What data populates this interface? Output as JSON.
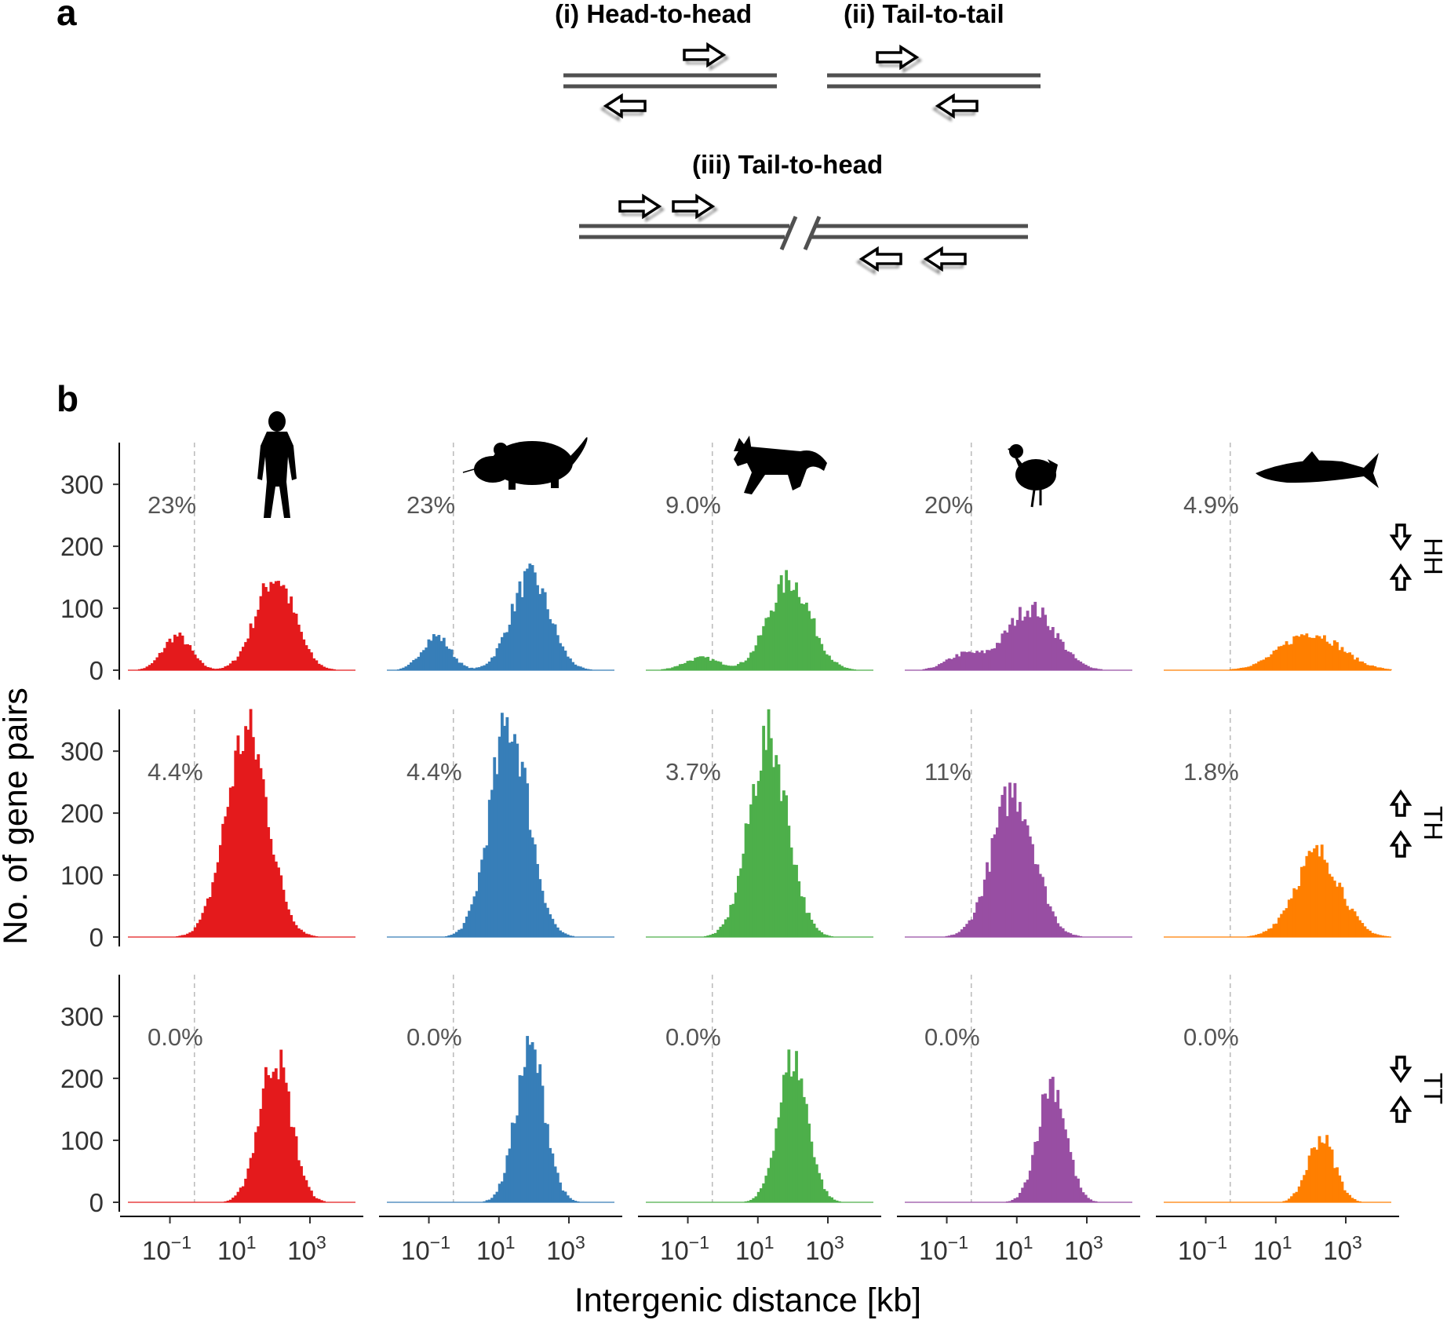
{
  "panel_a": {
    "label": "a",
    "configs": [
      {
        "key": "hh",
        "title": "(i) Head-to-head"
      },
      {
        "key": "tt",
        "title": "(ii) Tail-to-tail"
      },
      {
        "key": "th",
        "title": "(iii) Tail-to-head"
      }
    ]
  },
  "panel_b": {
    "label": "b"
  },
  "chart_data": {
    "type": "histogram-grid",
    "xlabel": "Intergenic distance [kb]",
    "ylabel": "No. of gene pairs",
    "x_scale": "log10",
    "xlim_log10": [
      -2.2,
      4.3
    ],
    "x_ticks": [
      {
        "log10": -1,
        "base": "10",
        "exp": "−1"
      },
      {
        "log10": 1,
        "base": "10",
        "exp": "1"
      },
      {
        "log10": 3,
        "base": "10",
        "exp": "3"
      }
    ],
    "cutoff_log10": -0.3,
    "ylim": [
      0,
      380
    ],
    "y_ticks": [
      "0",
      "100",
      "200",
      "300"
    ],
    "species": [
      {
        "name": "human",
        "icon": "human-silhouette-icon",
        "color": "#e41a1c"
      },
      {
        "name": "mouse",
        "icon": "mouse-silhouette-icon",
        "color": "#377eb8"
      },
      {
        "name": "dog",
        "icon": "dog-silhouette-icon",
        "color": "#4daf4a"
      },
      {
        "name": "chicken",
        "icon": "chicken-silhouette-icon",
        "color": "#984ea3"
      },
      {
        "name": "fish",
        "icon": "fish-silhouette-icon",
        "color": "#ff7f00"
      }
    ],
    "rows": [
      {
        "strip": "HH",
        "arrows": [
          "down",
          "up"
        ],
        "percent_labels": [
          "23%",
          "23%",
          "9.0%",
          "20%",
          "4.9%"
        ],
        "peaks": [
          [
            {
              "mu": -0.8,
              "sd": 0.4,
              "h": 55
            },
            {
              "mu": 2.0,
              "sd": 0.55,
              "h": 150
            }
          ],
          [
            {
              "mu": -0.8,
              "sd": 0.4,
              "h": 55
            },
            {
              "mu": 1.9,
              "sd": 0.55,
              "h": 150
            }
          ],
          [
            {
              "mu": -0.6,
              "sd": 0.5,
              "h": 20
            },
            {
              "mu": 1.9,
              "sd": 0.6,
              "h": 145
            }
          ],
          [
            {
              "mu": -0.5,
              "sd": 0.5,
              "h": 25
            },
            {
              "mu": 1.4,
              "sd": 0.7,
              "h": 100
            }
          ],
          [
            {
              "mu": 2.0,
              "sd": 0.85,
              "h": 60
            }
          ]
        ]
      },
      {
        "strip": "TH",
        "arrows": [
          "up",
          "up"
        ],
        "percent_labels": [
          "4.4%",
          "4.4%",
          "3.7%",
          "11%",
          "1.8%"
        ],
        "peaks": [
          [
            {
              "mu": 1.2,
              "sd": 0.6,
              "h": 330
            }
          ],
          [
            {
              "mu": 1.3,
              "sd": 0.55,
              "h": 345
            }
          ],
          [
            {
              "mu": 1.3,
              "sd": 0.55,
              "h": 320
            }
          ],
          [
            {
              "mu": 0.9,
              "sd": 0.6,
              "h": 235
            }
          ],
          [
            {
              "mu": 2.2,
              "sd": 0.65,
              "h": 135
            }
          ]
        ]
      },
      {
        "strip": "TT",
        "arrows": [
          "down",
          "up"
        ],
        "percent_labels": [
          "0.0%",
          "0.0%",
          "0.0%",
          "0.0%",
          "0.0%"
        ],
        "peaks": [
          [
            {
              "mu": 2.0,
              "sd": 0.45,
              "h": 235
            }
          ],
          [
            {
              "mu": 1.9,
              "sd": 0.42,
              "h": 245
            }
          ],
          [
            {
              "mu": 2.0,
              "sd": 0.42,
              "h": 230
            }
          ],
          [
            {
              "mu": 2.0,
              "sd": 0.4,
              "h": 195
            }
          ],
          [
            {
              "mu": 2.3,
              "sd": 0.38,
              "h": 105
            }
          ]
        ]
      }
    ]
  }
}
